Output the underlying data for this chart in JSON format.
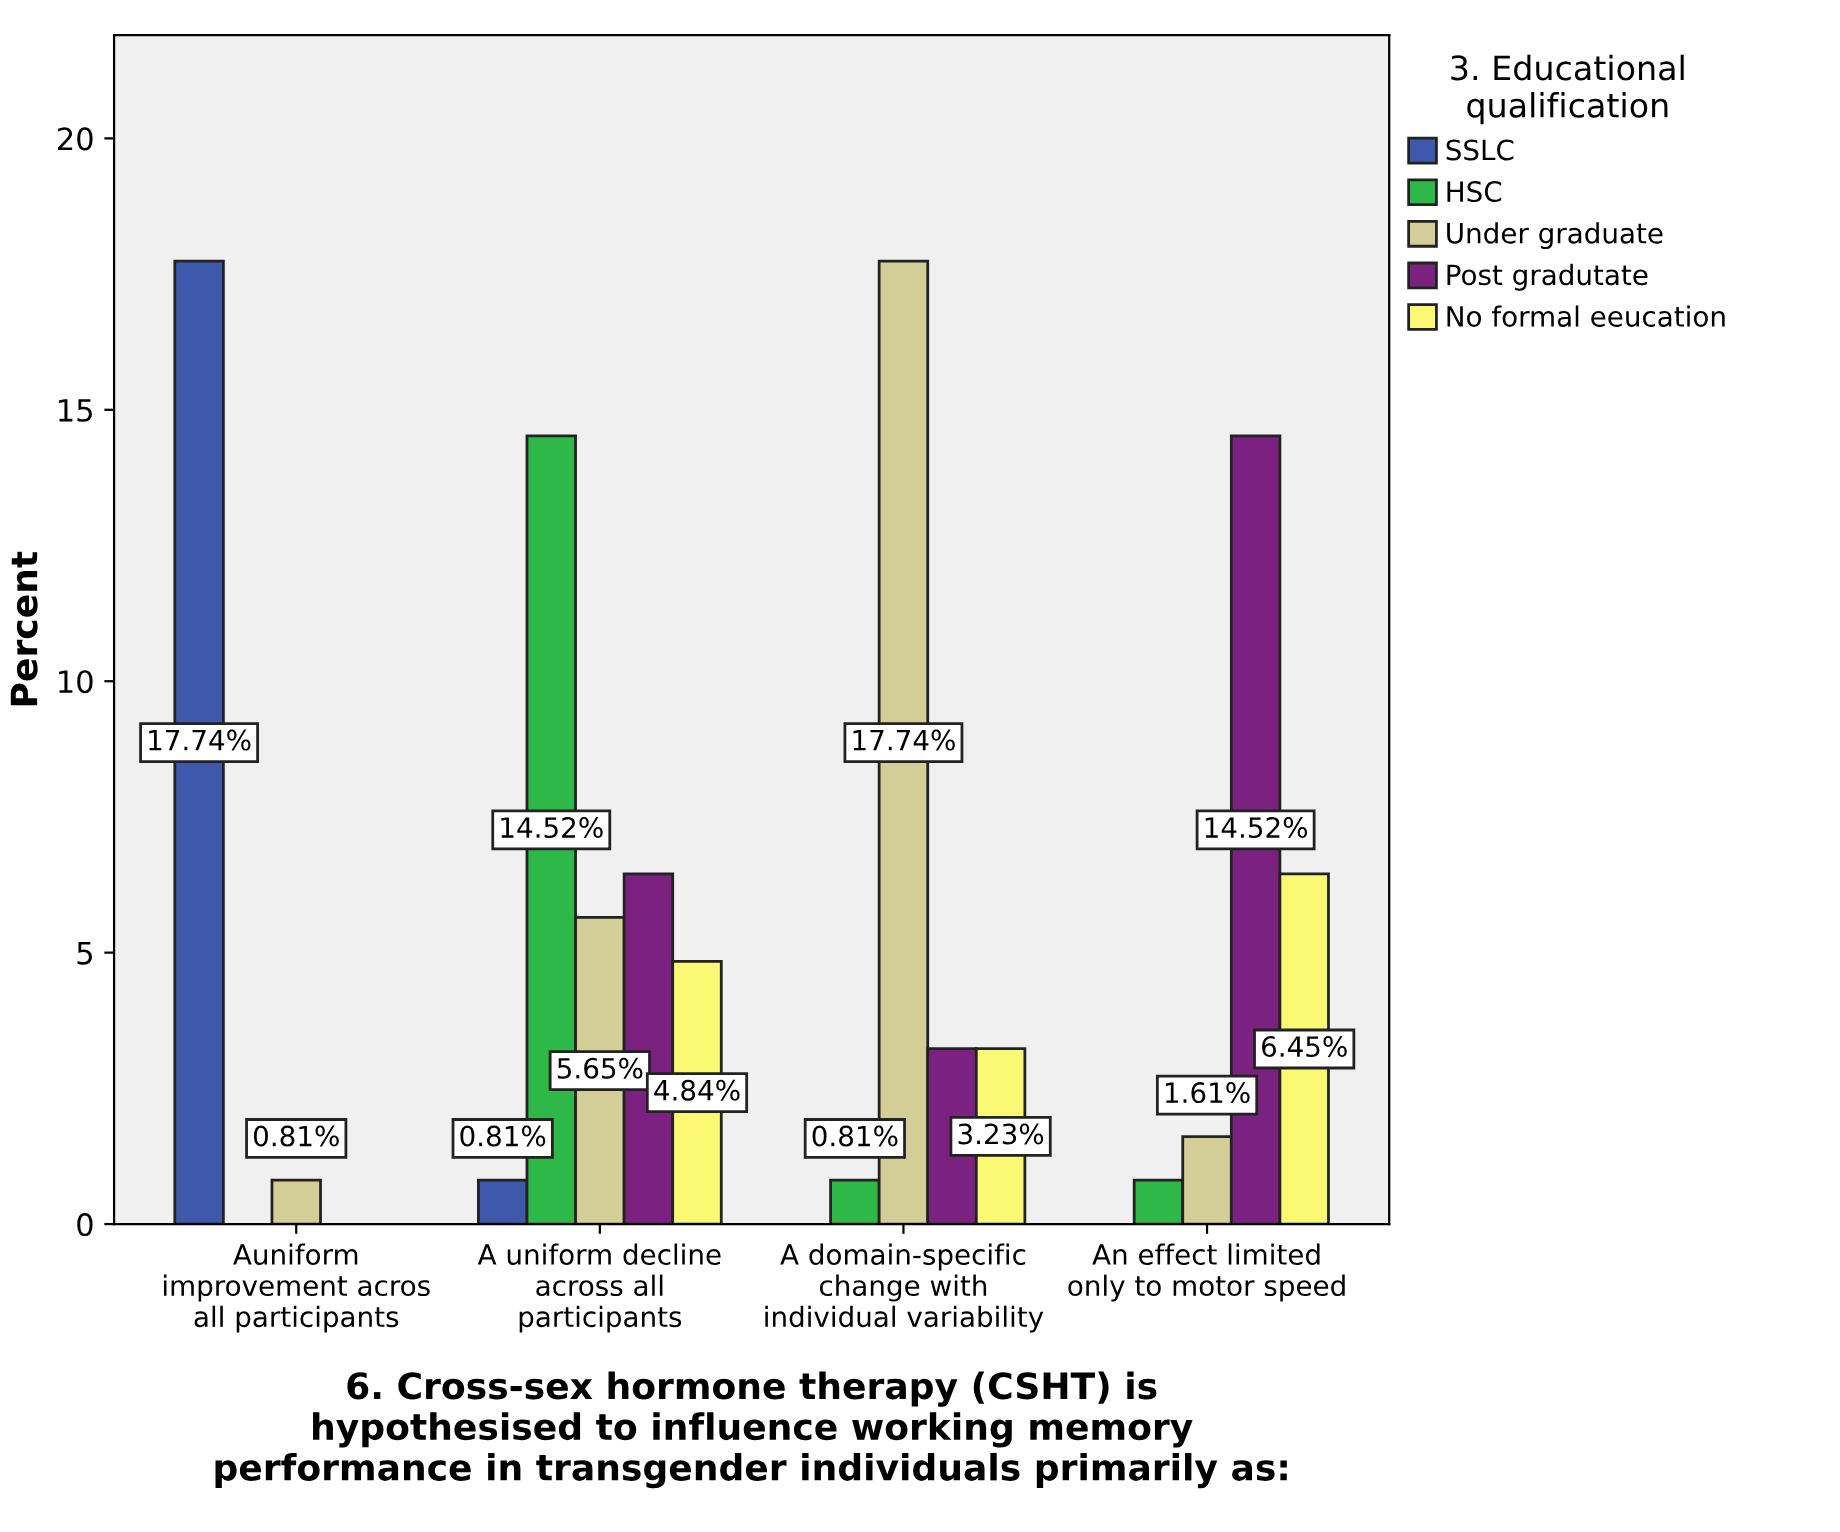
{
  "chart_data": {
    "type": "bar",
    "xlabel": "6. Cross-sex hormone therapy (CSHT) is\nhypothesised to influence working memory\nperformance in transgender individuals primarily as:",
    "ylabel": "Percent",
    "legend_title": "3. Educational\nqualification",
    "categories": [
      "Auniform\nimprovement acros\nall participants",
      "A uniform decline\nacross all\nparticipants",
      "A domain-specific\nchange with\nindividual variability",
      "An effect limited\nonly to motor speed"
    ],
    "series": [
      {
        "name": "SSLC",
        "color": "#3e58ac",
        "values": [
          17.74,
          0.81,
          null,
          null
        ],
        "value_labels": [
          "17.74%",
          "0.81%",
          null,
          null
        ]
      },
      {
        "name": "HSC",
        "color": "#2eb848",
        "values": [
          null,
          14.52,
          0.81,
          0.81
        ],
        "value_labels": [
          null,
          "14.52%",
          "0.81%",
          null
        ]
      },
      {
        "name": "Under graduate",
        "color": "#d3ce97",
        "values": [
          0.81,
          5.65,
          17.74,
          1.61
        ],
        "value_labels": [
          "0.81%",
          "5.65%",
          "17.74%",
          "1.61%"
        ]
      },
      {
        "name": "Post gradutate",
        "color": "#7b2281",
        "values": [
          null,
          6.45,
          3.23,
          14.52
        ],
        "value_labels": [
          null,
          null,
          null,
          "14.52%"
        ]
      },
      {
        "name": "No formal eeucation",
        "color": "#fbf873",
        "values": [
          null,
          4.84,
          3.23,
          6.45
        ],
        "value_labels": [
          null,
          "4.84%",
          "3.23%",
          "6.45%"
        ]
      }
    ],
    "ylim": [
      0,
      21.9
    ],
    "yticks": [
      0,
      5,
      10,
      15,
      20
    ],
    "grid": false,
    "legend": "right"
  }
}
